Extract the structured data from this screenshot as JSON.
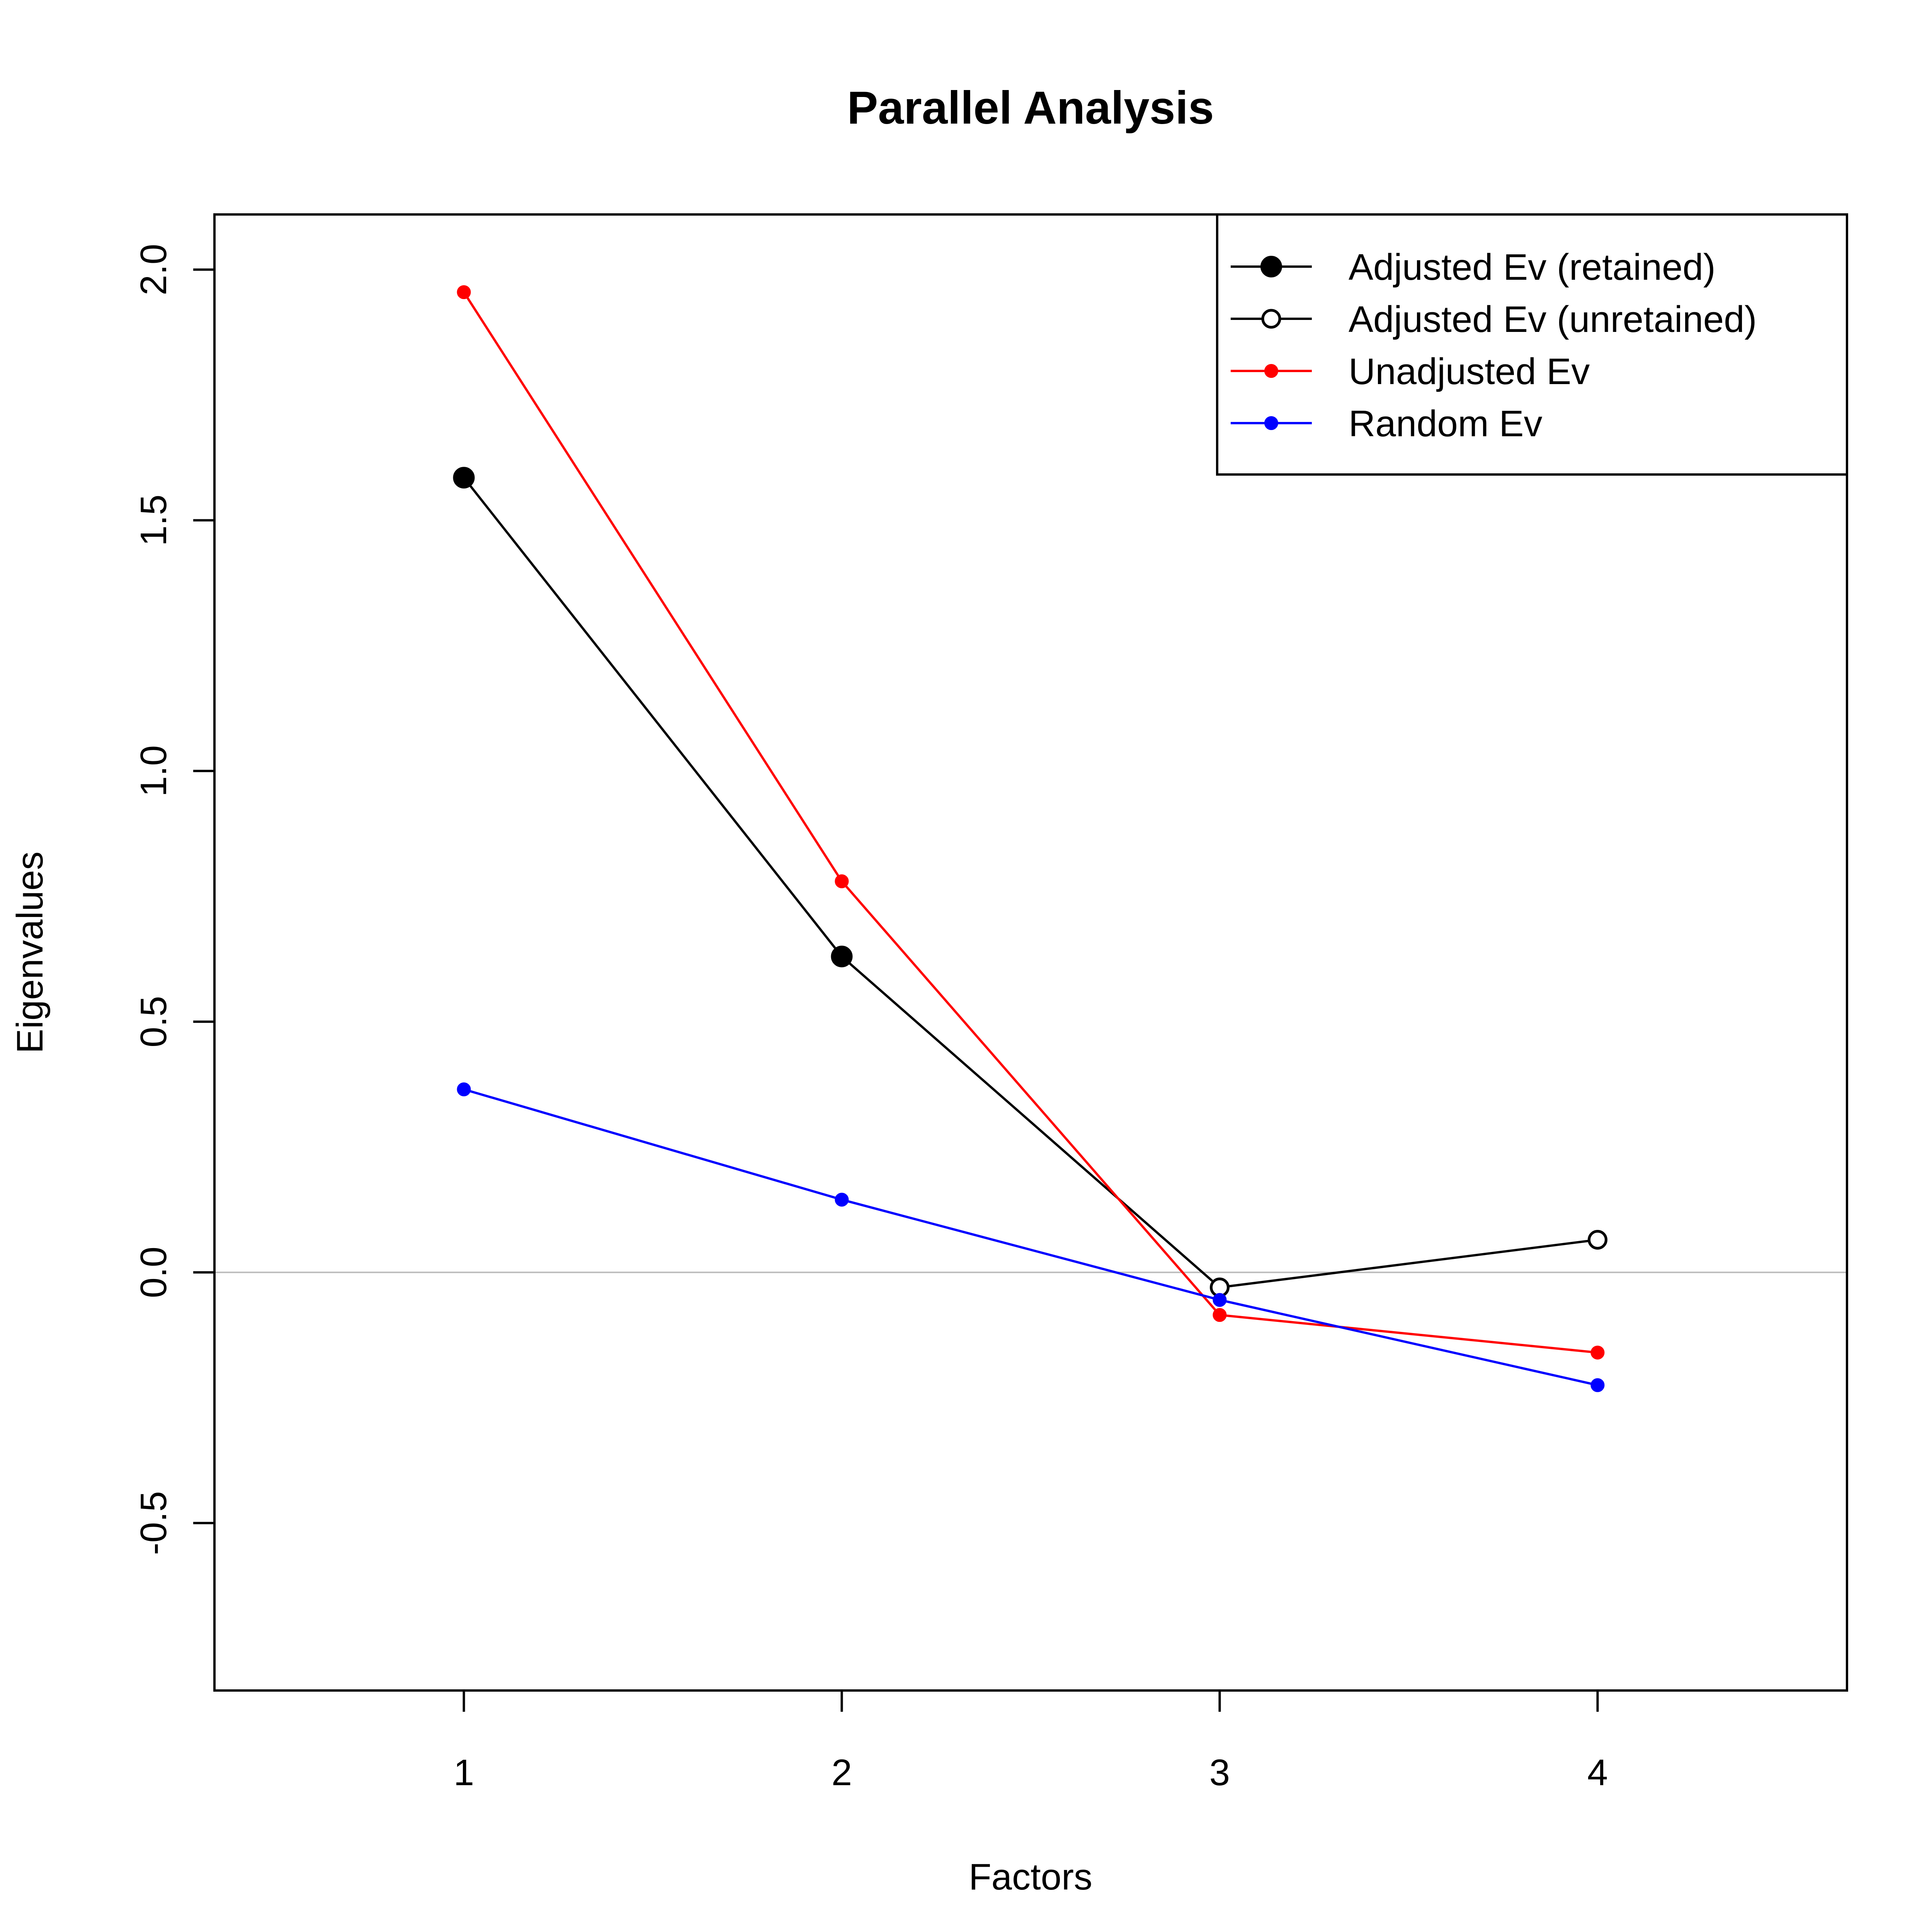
{
  "chart_data": {
    "type": "line",
    "title": "Parallel Analysis",
    "xlabel": "Factors",
    "ylabel": "Eigenvalues",
    "x": [
      1,
      2,
      3,
      4
    ],
    "xlim": [
      0.34,
      4.66
    ],
    "ylim": [
      -0.834,
      2.11
    ],
    "x_ticks": [
      "1",
      "2",
      "3",
      "4"
    ],
    "y_ticks": [
      "-0.5",
      "0.0",
      "0.5",
      "1.0",
      "1.5",
      "2.0"
    ],
    "reference_line_y": 0,
    "grid": false,
    "legend_position": "top-right",
    "series": [
      {
        "name": "Adjusted Ev (retained)",
        "color": "#000000",
        "marker": "filled-circle-large",
        "x": [
          1,
          2
        ],
        "values": [
          1.585,
          0.63
        ]
      },
      {
        "name": "Adjusted Ev (unretained)",
        "color": "#000000",
        "marker": "open-circle",
        "x": [
          3,
          4
        ],
        "values": [
          -0.03,
          0.065
        ]
      },
      {
        "name": "Unadjusted Ev",
        "color": "#ff0000",
        "marker": "filled-circle-small",
        "x": [
          1,
          2,
          3,
          4
        ],
        "values": [
          1.955,
          0.78,
          -0.085,
          -0.16
        ]
      },
      {
        "name": "Random Ev",
        "color": "#0000ff",
        "marker": "filled-circle-small",
        "x": [
          1,
          2,
          3,
          4
        ],
        "values": [
          0.365,
          0.145,
          -0.055,
          -0.225
        ]
      }
    ]
  }
}
